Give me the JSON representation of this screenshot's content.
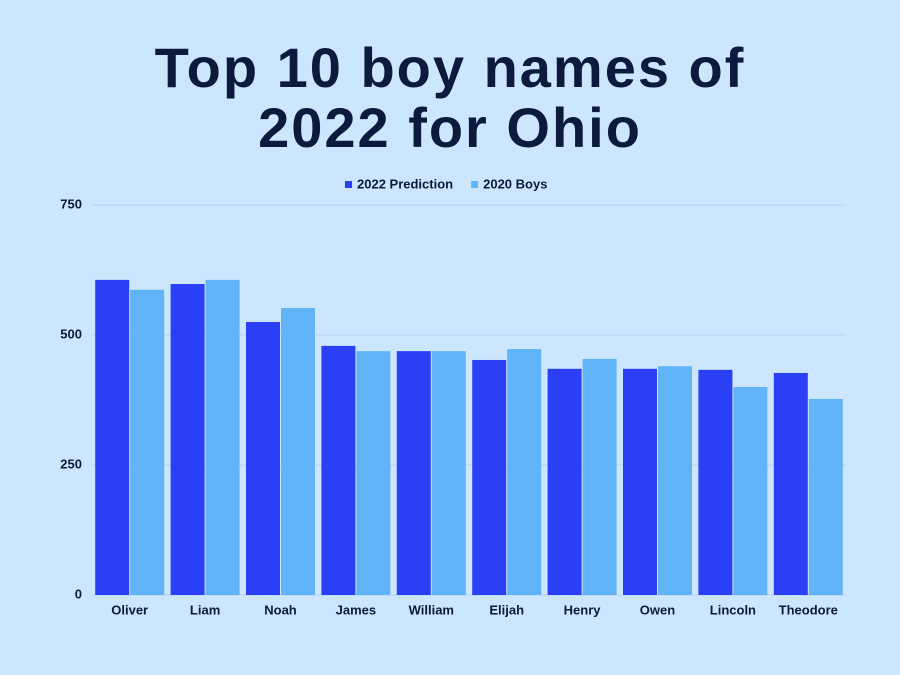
{
  "chart_data": {
    "type": "bar",
    "title": "Top 10 boy names of 2022 for Ohio",
    "categories": [
      "Oliver",
      "Liam",
      "Noah",
      "James",
      "William",
      "Elijah",
      "Henry",
      "Owen",
      "Lincoln",
      "Theodore"
    ],
    "series": [
      {
        "name": "2022 Prediction",
        "color": "#2b3ff5",
        "values": [
          606,
          598,
          525,
          479,
          469,
          452,
          435,
          435,
          433,
          427
        ]
      },
      {
        "name": "2020 Boys",
        "color": "#62b4f8",
        "values": [
          587,
          606,
          552,
          469,
          469,
          473,
          454,
          440,
          400,
          377
        ]
      }
    ],
    "ylim": [
      0,
      750
    ],
    "yticks": [
      0,
      250,
      500,
      750
    ],
    "grid": true
  }
}
